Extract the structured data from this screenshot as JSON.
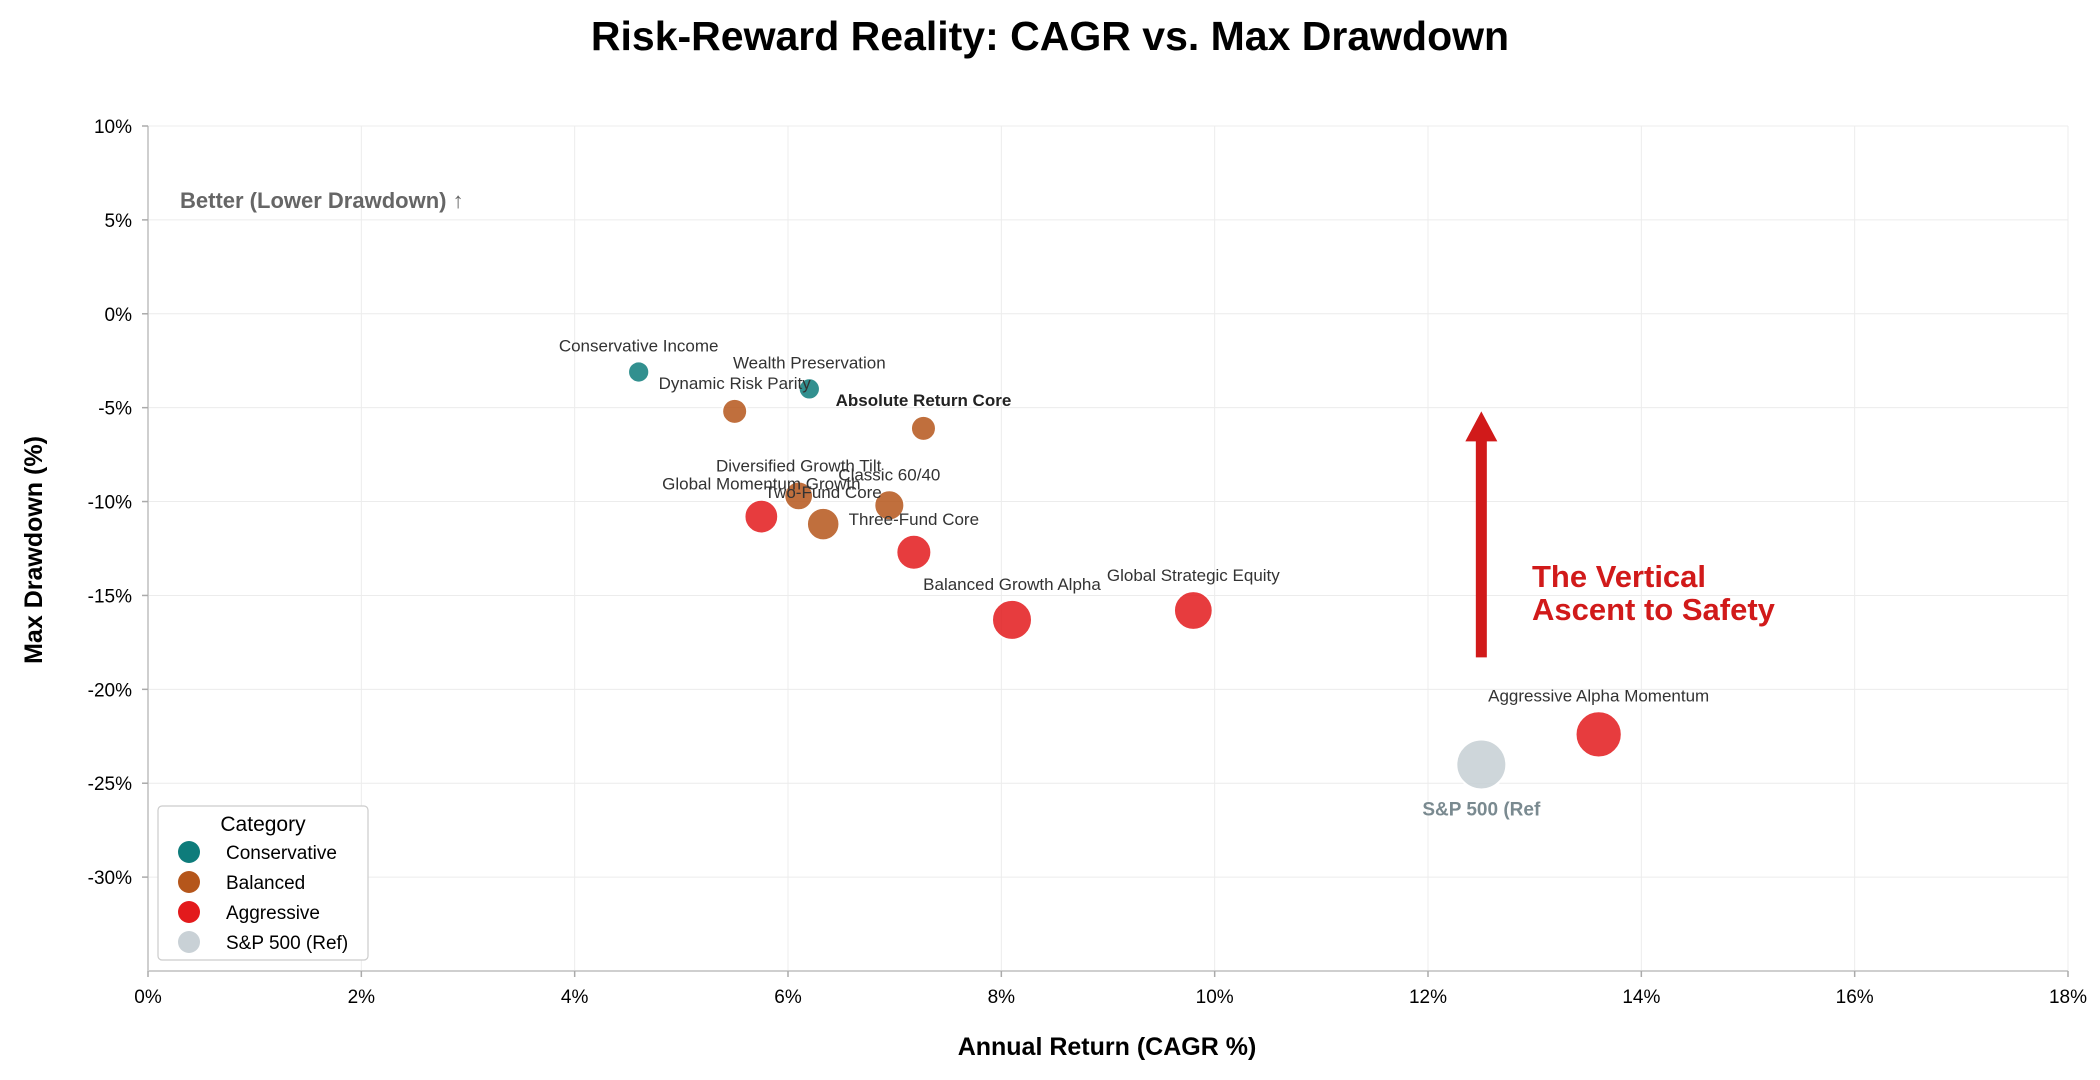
{
  "chart_data": {
    "type": "scatter",
    "title": "Risk-Reward Reality: CAGR vs. Max Drawdown",
    "xlabel": "Annual Return (CAGR %)",
    "ylabel": "Max Drawdown (%)",
    "xlim": [
      0,
      18
    ],
    "ylim": [
      -35,
      10
    ],
    "x_ticks": [
      0,
      2,
      4,
      6,
      8,
      10,
      12,
      14,
      16,
      18
    ],
    "y_ticks": [
      10,
      5,
      0,
      -5,
      -10,
      -15,
      -20,
      -25,
      -30
    ],
    "x_tick_labels": [
      "0%",
      "2%",
      "4%",
      "6%",
      "8%",
      "10%",
      "12%",
      "14%",
      "16%",
      "18%"
    ],
    "y_tick_labels": [
      "10%",
      "5%",
      "0%",
      "-5%",
      "-10%",
      "-15%",
      "-20%",
      "-25%",
      "-30%"
    ],
    "grid": true,
    "legend": {
      "title": "Category",
      "placement": "lower-left",
      "entries": [
        {
          "name": "Conservative",
          "color": "#0e7c7b"
        },
        {
          "name": "Balanced",
          "color": "#b5561b"
        },
        {
          "name": "Aggressive",
          "color": "#e31a1c"
        },
        {
          "name": "S&P 500 (Ref)",
          "color": "#c9d1d6"
        }
      ]
    },
    "categories": {
      "Conservative": "#0e7c7b",
      "Balanced": "#b5561b",
      "Aggressive": "#e31a1c",
      "S&P 500 (Ref)": "#c9d1d6"
    },
    "points": [
      {
        "label": "Conservative Income",
        "x": 4.6,
        "y": -3.1,
        "category": "Conservative",
        "size": 0.85
      },
      {
        "label": "Wealth Preservation",
        "x": 6.2,
        "y": -4.0,
        "category": "Conservative",
        "size": 0.85
      },
      {
        "label": "Dynamic Risk Parity",
        "x": 5.5,
        "y": -5.2,
        "category": "Balanced",
        "size": 1.0
      },
      {
        "label": "Absolute Return Core",
        "x": 7.27,
        "y": -6.1,
        "category": "Balanced",
        "size": 1.0,
        "bold": true
      },
      {
        "label": "Diversified Growth Tilt",
        "x": 6.1,
        "y": -9.7,
        "category": "Balanced",
        "size": 1.15
      },
      {
        "label": "Classic 60/40",
        "x": 6.95,
        "y": -10.2,
        "category": "Balanced",
        "size": 1.2
      },
      {
        "label": "Two-Fund Core",
        "x": 6.33,
        "y": -11.2,
        "category": "Balanced",
        "size": 1.3
      },
      {
        "label": "Global Momentum Growth",
        "x": 5.75,
        "y": -10.8,
        "category": "Aggressive",
        "size": 1.35
      },
      {
        "label": "Three-Fund Core",
        "x": 7.18,
        "y": -12.7,
        "category": "Aggressive",
        "size": 1.4
      },
      {
        "label": "Balanced Growth Alpha",
        "x": 8.1,
        "y": -16.3,
        "category": "Aggressive",
        "size": 1.6
      },
      {
        "label": "Global Strategic Equity",
        "x": 9.8,
        "y": -15.8,
        "category": "Aggressive",
        "size": 1.55
      },
      {
        "label": "Aggressive Alpha Momentum",
        "x": 13.6,
        "y": -22.4,
        "category": "Aggressive",
        "size": 1.85
      },
      {
        "label": "S&P 500 (Ref",
        "x": 12.5,
        "y": -24.0,
        "category": "S&P 500 (Ref)",
        "size": 2.0
      }
    ],
    "annotations": {
      "better_note": "Better (Lower Drawdown) ↑",
      "ascent_line1": "The Vertical",
      "ascent_line2": "Ascent to Safety",
      "ascent_color": "#d11a1a",
      "arrow_x": 12.5,
      "arrow_from_y": -18.3,
      "arrow_to_y": -5.2
    }
  }
}
